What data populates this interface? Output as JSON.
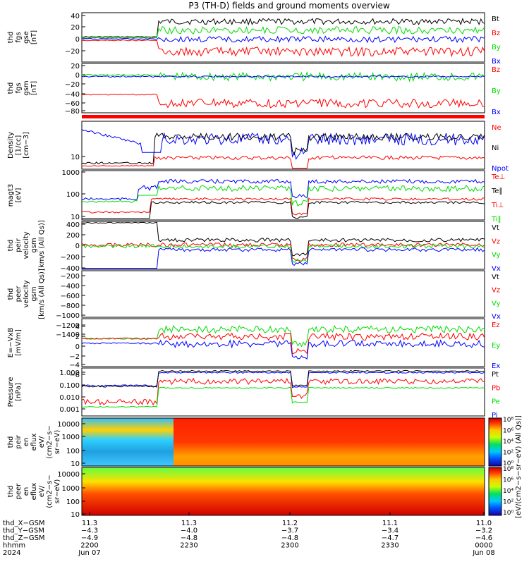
{
  "title": "P3 (TH-D) fields and ground moments overview",
  "colors": {
    "black": "#000000",
    "red": "#ff0000",
    "green": "#00dd00",
    "blue": "#0000ff"
  },
  "panels": [
    {
      "id": "fgs_gse",
      "ylabel": [
        "thd",
        "fgs",
        "gse",
        "[nT]"
      ],
      "ticks": [
        "40",
        "20",
        "0",
        "−20"
      ],
      "legend": [
        {
          "t": "Bt",
          "c": "black"
        },
        {
          "t": "Bz",
          "c": "red"
        },
        {
          "t": "By",
          "c": "green"
        },
        {
          "t": "Bx",
          "c": "blue"
        }
      ]
    },
    {
      "id": "fgs_gsm",
      "ylabel": [
        "thd",
        "fgs",
        "gsm",
        "[nT]"
      ],
      "ticks": [
        "20",
        "0",
        "−20",
        "−40",
        "−60",
        "−80"
      ],
      "legend": [
        {
          "t": "Bz",
          "c": "red"
        },
        {
          "t": "By",
          "c": "green"
        },
        {
          "t": "Bx",
          "c": "blue"
        }
      ]
    },
    {
      "id": "density",
      "ylabel": [
        "Density",
        "[1/cc]",
        "[cm−3]"
      ],
      "ticks": [
        "10"
      ],
      "legend": [
        {
          "t": "Ne",
          "c": "red"
        },
        {
          "t": "Ni",
          "c": "black"
        },
        {
          "t": "Npot",
          "c": "blue"
        }
      ]
    },
    {
      "id": "temp",
      "ylabel": [
        "magt3",
        "[eV]"
      ],
      "ticks": [
        "1000",
        "100",
        "10"
      ],
      "legend": [
        {
          "t": "Te⊥",
          "c": "red"
        },
        {
          "t": "Te∥",
          "c": "black"
        },
        {
          "t": "Ti⊥",
          "c": "red"
        },
        {
          "t": "Ti∥",
          "c": "green"
        }
      ]
    },
    {
      "id": "peir_vel",
      "ylabel": [
        "thd",
        "peir",
        "velocity",
        "gsm",
        "[km/s (All Qs)]"
      ],
      "ticks": [
        "400",
        "200",
        "0",
        "−200",
        "−400"
      ],
      "legend": [
        {
          "t": "Vt",
          "c": "black"
        },
        {
          "t": "Vz",
          "c": "red"
        },
        {
          "t": "Vy",
          "c": "green"
        },
        {
          "t": "Vx",
          "c": "blue"
        }
      ]
    },
    {
      "id": "peer_vel",
      "ylabel": [
        "thd",
        "peer",
        "velocity",
        "gsm",
        "[km/s (All Qs)]"
      ],
      "ticks": [
        "−200",
        "−400",
        "−600",
        "−800",
        "−1000",
        "−1200",
        "−1400"
      ],
      "legend": [
        {
          "t": "Vt",
          "c": "black"
        },
        {
          "t": "Vz",
          "c": "red"
        },
        {
          "t": "Vy",
          "c": "green"
        },
        {
          "t": "Vx",
          "c": "blue"
        }
      ]
    },
    {
      "id": "efield",
      "ylabel": [
        "E=−VxB",
        "[mV/m]"
      ],
      "ticks": [
        "4",
        "2",
        "0",
        "−2",
        "−4",
        "−6"
      ],
      "legend": [
        {
          "t": "Ez",
          "c": "red"
        },
        {
          "t": "Ey",
          "c": "green"
        },
        {
          "t": "Ex",
          "c": "blue"
        }
      ]
    },
    {
      "id": "pressure",
      "ylabel": [
        "Pressure",
        "[nPa]"
      ],
      "ticks": [
        "1.000",
        "0.100",
        "0.010",
        "0.001"
      ],
      "legend": [
        {
          "t": "Pt",
          "c": "black"
        },
        {
          "t": "Pb",
          "c": "red"
        },
        {
          "t": "Pe",
          "c": "green"
        },
        {
          "t": "Pi",
          "c": "blue"
        }
      ]
    },
    {
      "id": "peir_spec",
      "ylabel": [
        "thd",
        "peir",
        "en",
        "eflux",
        "eV/",
        "(cm2−s−",
        "sr−eV)"
      ],
      "ticks": [
        "10000",
        "1000",
        "100",
        "10"
      ],
      "legend": []
    },
    {
      "id": "peer_spec",
      "ylabel": [
        "thd",
        "peer",
        "en",
        "eflux",
        "eV/",
        "(cm2−s−",
        "sr−eV)"
      ],
      "ticks": [
        "10000",
        "1000",
        "100",
        "10"
      ],
      "legend": []
    }
  ],
  "colorbar": {
    "label": "[eV/(cm2−s−sr−eV) (All Qs)]",
    "upper": [
      "10⁸",
      "10⁶",
      "10⁴",
      "10²",
      "10⁰"
    ],
    "lower": [
      "10⁸",
      "10⁶",
      "10⁴",
      "10²",
      "10⁰"
    ]
  },
  "xaxis": {
    "rows": [
      {
        "label": "thd_X−GSM",
        "values": [
          "11.3",
          "11.3",
          "11.2",
          "11.1",
          "11.0"
        ]
      },
      {
        "label": "thd_Y−GSM",
        "values": [
          "−4.3",
          "−4.0",
          "−3.7",
          "−3.4",
          "−3.2"
        ]
      },
      {
        "label": "thd_Z−GSM",
        "values": [
          "−4.9",
          "−4.8",
          "−4.8",
          "−4.7",
          "−4.6"
        ]
      },
      {
        "label": "hhmm",
        "values": [
          "2200",
          "2230",
          "2300",
          "2330",
          "0000"
        ]
      },
      {
        "label": "2024",
        "values": [
          "Jun 07",
          "",
          "",
          "",
          "Jun 08"
        ]
      }
    ]
  },
  "chart_data": {
    "type": "line",
    "title": "P3 (TH-D) fields and ground moments overview",
    "x": [
      "2200",
      "2230",
      "2300",
      "2330",
      "0000"
    ],
    "x_date_start": "Jun 07 2024",
    "x_date_end": "Jun 08 2024",
    "series": [
      {
        "name": "Bt",
        "panel": "fgs_gse",
        "values": [
          3,
          32,
          32,
          30,
          30
        ]
      },
      {
        "name": "Bz",
        "panel": "fgs_gse",
        "values": [
          -2,
          -20,
          -15,
          -15,
          -12
        ]
      },
      {
        "name": "By",
        "panel": "fgs_gse",
        "values": [
          0,
          20,
          22,
          18,
          20
        ]
      },
      {
        "name": "Bx",
        "panel": "fgs_gse",
        "values": [
          -2,
          0,
          0,
          0,
          0
        ]
      },
      {
        "name": "Bz",
        "panel": "fgs_gsm",
        "values": [
          -50,
          -70,
          -65,
          -70,
          -75
        ]
      },
      {
        "name": "By",
        "panel": "fgs_gsm",
        "values": [
          0,
          0,
          -5,
          0,
          -5
        ]
      },
      {
        "name": "Bx",
        "panel": "fgs_gsm",
        "values": [
          -3,
          -5,
          -5,
          -5,
          -5
        ]
      },
      {
        "name": "Vx",
        "panel": "peir_vel",
        "values": [
          -400,
          -50,
          -80,
          -60,
          -50
        ]
      },
      {
        "name": "Vt",
        "panel": "peir_vel",
        "values": [
          400,
          100,
          90,
          80,
          70
        ]
      },
      {
        "name": "Ez",
        "panel": "efield",
        "values": [
          0,
          3,
          3,
          2,
          1
        ]
      },
      {
        "name": "Ey",
        "panel": "efield",
        "values": [
          0.5,
          2,
          2,
          2,
          1.5
        ]
      },
      {
        "name": "Ex",
        "panel": "efield",
        "values": [
          -0.5,
          -1,
          -1,
          -0.5,
          -1
        ]
      }
    ]
  }
}
